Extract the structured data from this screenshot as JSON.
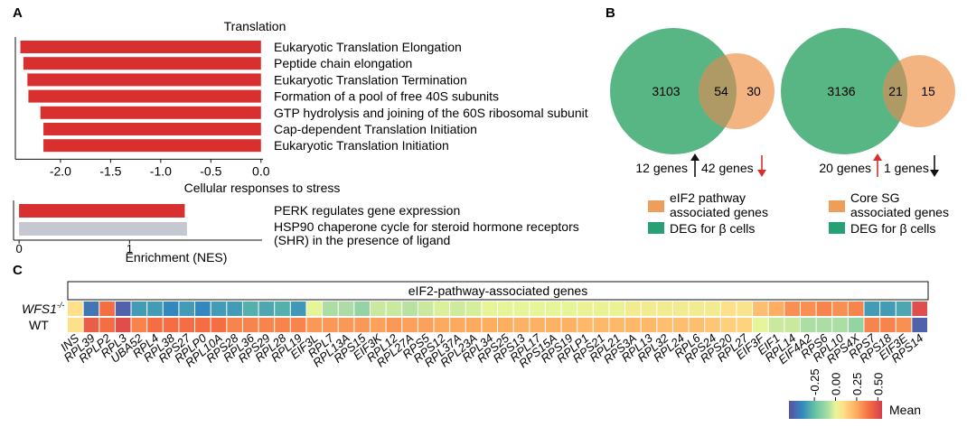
{
  "panels": {
    "a": "A",
    "b": "B",
    "c": "C"
  },
  "panel_a": {
    "chart_top": {
      "title": "Translation",
      "bars": [
        {
          "label": "Eukaryotic Translation Elongation",
          "value": -2.4
        },
        {
          "label": "Peptide chain elongation",
          "value": -2.37
        },
        {
          "label": "Eukaryotic Translation Termination",
          "value": -2.33
        },
        {
          "label": "Formation of a pool of free 40S subunits",
          "value": -2.32
        },
        {
          "label": "GTP hydrolysis and joining of the 60S ribosomal subunit",
          "value": -2.2
        },
        {
          "label": "Cap-dependent Translation Initiation",
          "value": -2.17
        },
        {
          "label": "Eukaryotic Translation Initiation",
          "value": -2.17
        }
      ],
      "ticks": [
        "-2.0",
        "-1.5",
        "-1.0",
        "-0.5",
        "0.0"
      ],
      "tick_values": [
        -2.0,
        -1.5,
        -1.0,
        -0.5,
        0.0
      ],
      "xlim": [
        -2.45,
        0.02
      ],
      "bar_color": "#d7302f"
    },
    "chart_bottom": {
      "title": "Cellular responses to stress",
      "bars": [
        {
          "label": "PERK regulates gene expression",
          "value": 1.5,
          "color": "#d7302f"
        },
        {
          "label_lines": [
            "HSP90 chaperone cycle for steroid hormone receptors",
            "(SHR) in the presence of ligand"
          ],
          "value": 1.52,
          "color": "#c5c8d0"
        }
      ],
      "ticks": [
        "0",
        "1"
      ],
      "tick_values": [
        0,
        1
      ],
      "xlim": [
        -0.05,
        2.2
      ],
      "xlabel": "Enrichment (NES)"
    }
  },
  "panel_b": {
    "venn_left": {
      "a_only": "3103",
      "overlap": "54",
      "b_only": "30"
    },
    "venn_right": {
      "a_only": "3136",
      "overlap": "21",
      "b_only": "15"
    },
    "left_arrows": {
      "up_text": "12 genes",
      "down_text": "42 genes"
    },
    "right_arrows": {
      "up_text": "20 genes",
      "down_text": "1 genes"
    },
    "legend_left": [
      {
        "lines": [
          "eIF2 pathway",
          "associated genes"
        ],
        "color": "#ed9e5a"
      },
      {
        "lines": [
          "DEG for β cells"
        ],
        "color": "#27a073"
      }
    ],
    "legend_right": [
      {
        "lines": [
          "Core SG",
          "associated genes"
        ],
        "color": "#ed9e5a"
      },
      {
        "lines": [
          "DEG for β cells"
        ],
        "color": "#27a073"
      }
    ],
    "colors": {
      "green": "#4fb17d",
      "orange": "#f2b07a",
      "overlap": "#a99864",
      "up": "#d7302f",
      "down": "#111111"
    }
  },
  "panel_c": {
    "header": "eIF2-pathway-associated genes",
    "row_labels": {
      "wfs1": "WFS1",
      "wfs1_sup": "-/-",
      "wt": "WT"
    },
    "genes": [
      "INS",
      "RPL39",
      "RPLP2",
      "RPL3",
      "UBA52",
      "RPL4",
      "RPL38",
      "RPS27",
      "RPLP0",
      "RPL10A",
      "RPS28",
      "RPL36",
      "RPS29",
      "RPL28",
      "RPL19",
      "EIF3L",
      "RPL7",
      "RPL13A",
      "RPS15",
      "EIF3K",
      "RPL12",
      "RPL27A",
      "RPS5",
      "RPS12",
      "RPL37A",
      "RPL23A",
      "RPL34",
      "RPS25",
      "RPS13",
      "RPL17",
      "RPS15A",
      "RPS19",
      "RPLP1",
      "RPS21",
      "RPL21",
      "RPS3A",
      "RPL13",
      "RPL32",
      "RPL24",
      "RPL6",
      "RPS24",
      "RPS20",
      "RPL27",
      "EIF3F",
      "EIF1",
      "RPL14",
      "EIF4A2",
      "RPS6",
      "RPL10",
      "RPS4X",
      "RPS7",
      "RPS18",
      "EIF3E",
      "RPS14"
    ],
    "wfs1_values": [
      0.1,
      -0.45,
      0.4,
      -0.5,
      -0.35,
      -0.35,
      -0.4,
      -0.35,
      -0.4,
      -0.35,
      -0.35,
      -0.3,
      -0.32,
      -0.3,
      -0.36,
      0.0,
      -0.1,
      -0.1,
      -0.15,
      -0.05,
      -0.05,
      -0.08,
      -0.05,
      -0.02,
      -0.04,
      -0.03,
      0.0,
      0.0,
      0.0,
      0.0,
      0.0,
      0.0,
      0.02,
      0.02,
      0.02,
      0.05,
      0.05,
      0.05,
      0.05,
      0.05,
      0.05,
      0.1,
      0.08,
      0.2,
      0.25,
      0.32,
      0.32,
      0.35,
      0.32,
      0.35,
      -0.35,
      -0.35,
      -0.32,
      0.5
    ],
    "wt_values": [
      0.1,
      0.45,
      0.4,
      0.5,
      0.35,
      0.4,
      0.4,
      0.4,
      0.4,
      0.4,
      0.35,
      0.35,
      0.35,
      0.35,
      0.35,
      0.3,
      0.3,
      0.3,
      0.3,
      0.28,
      0.3,
      0.28,
      0.28,
      0.26,
      0.26,
      0.26,
      0.25,
      0.25,
      0.24,
      0.24,
      0.24,
      0.24,
      0.22,
      0.22,
      0.22,
      0.22,
      0.22,
      0.2,
      0.2,
      0.2,
      0.18,
      0.15,
      0.14,
      0.0,
      -0.05,
      -0.05,
      -0.1,
      -0.1,
      -0.1,
      -0.15,
      0.35,
      0.35,
      0.32,
      -0.5
    ],
    "colorbar": {
      "ticks": [
        "-0.25",
        "0.00",
        "0.25",
        "0.50"
      ],
      "tick_values": [
        -0.25,
        0.0,
        0.25,
        0.5
      ],
      "range": [
        -0.55,
        0.55
      ],
      "label": "Mean"
    }
  }
}
